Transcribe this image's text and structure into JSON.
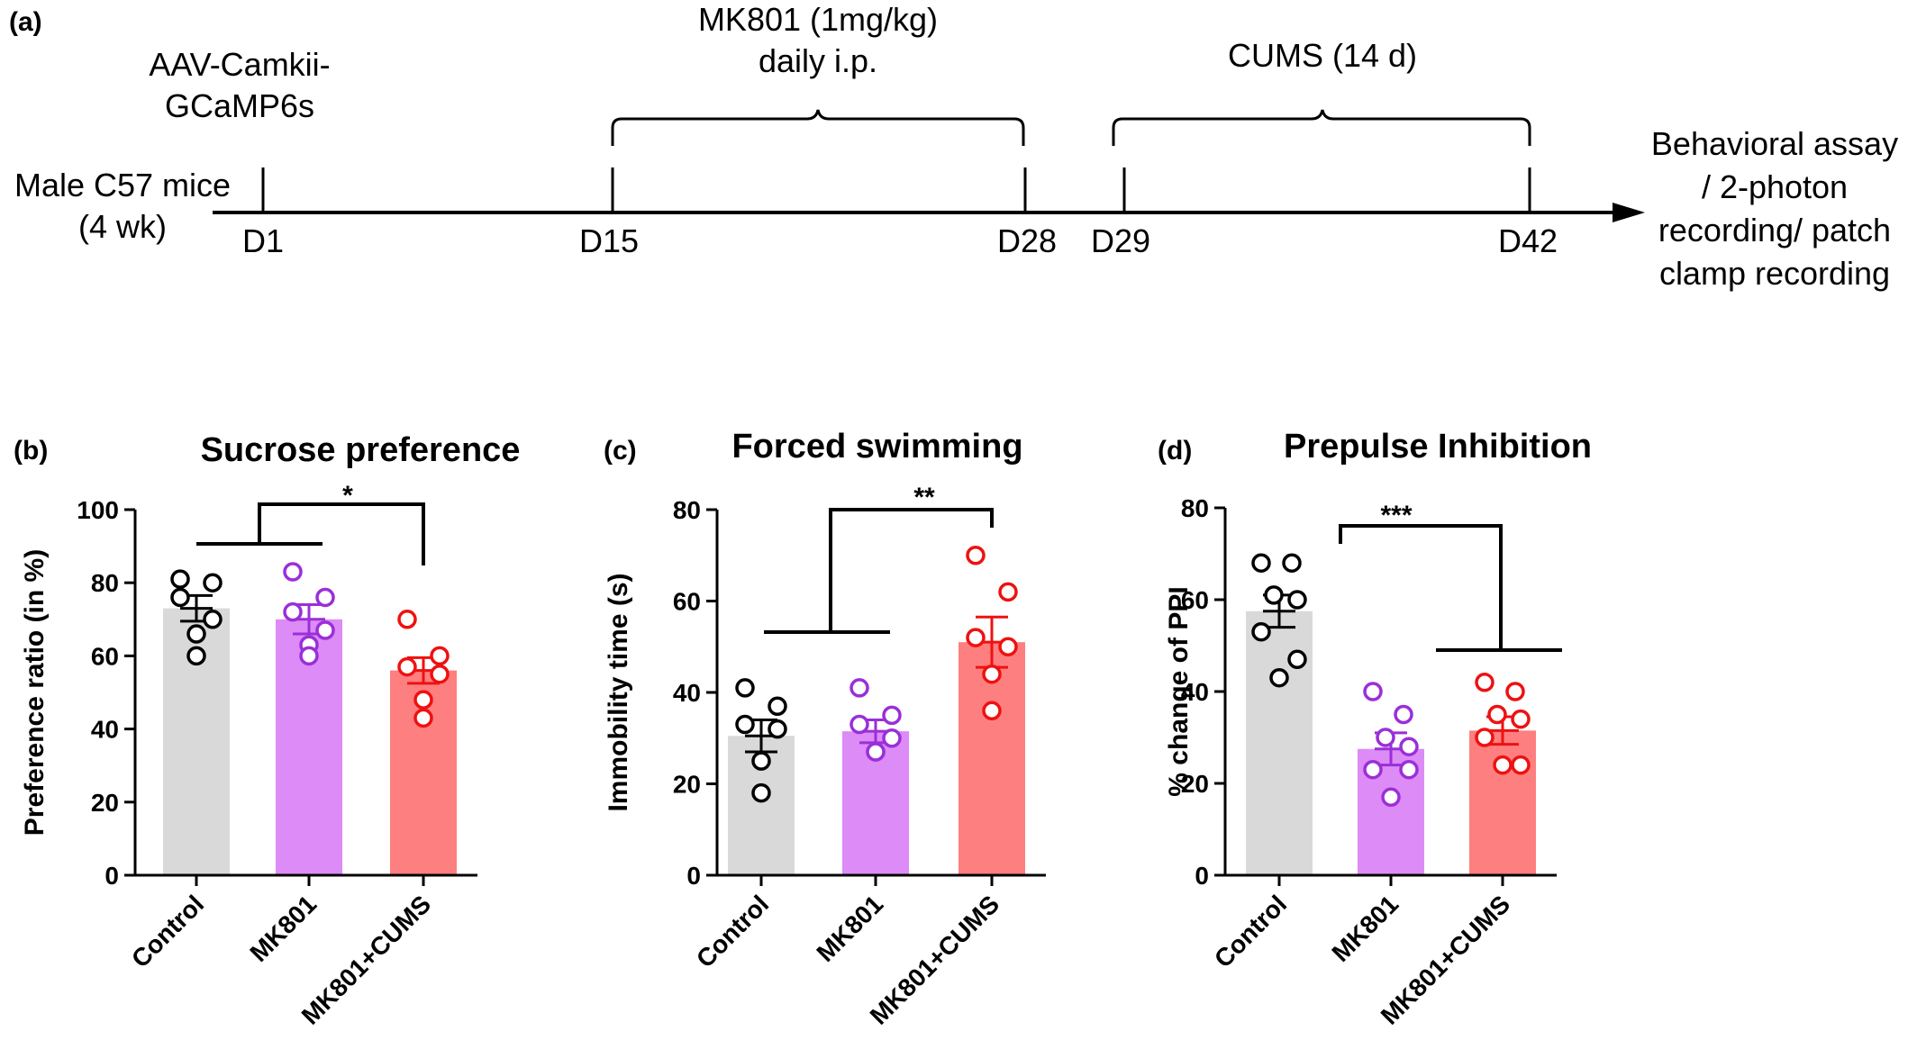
{
  "timeline": {
    "panel_label": "(a)",
    "start_label_line1": "Male C57 mice",
    "start_label_line2": "(4 wk)",
    "aav_line1": "AAV-Camkii-",
    "aav_line2": "GCaMP6s",
    "mk801_line1": "MK801 (1mg/kg)",
    "mk801_line2": "daily i.p.",
    "cums_label": "CUMS (14 d)",
    "days": [
      "D1",
      "D15",
      "D28",
      "D29",
      "D42"
    ],
    "end_line1": "Behavioral assay",
    "end_line2": "/ 2-photon",
    "end_line3": "recording/ patch",
    "end_line4": "clamp recording"
  },
  "chart_data": [
    {
      "type": "bar",
      "panel_label": "(b)",
      "title": "Sucrose preference",
      "ylabel": "Preference ratio (in %)",
      "ylim": [
        0,
        100
      ],
      "yticks": [
        0,
        20,
        40,
        60,
        80,
        100
      ],
      "categories": [
        "Control",
        "MK801",
        "MK801+CUMS"
      ],
      "values": [
        73,
        70,
        56
      ],
      "sem": [
        3.5,
        4,
        3.5
      ],
      "points": [
        [
          81,
          80,
          76,
          70,
          66,
          60
        ],
        [
          83,
          76,
          72,
          67,
          63,
          60
        ],
        [
          70,
          60,
          57,
          55,
          48,
          43
        ]
      ],
      "colors": [
        "#d9d9d9",
        "#dd8bf7",
        "#fe7f7f"
      ],
      "point_colors": [
        "#000000",
        "#9a2fd8",
        "#ee1111"
      ],
      "significance": "*"
    },
    {
      "type": "bar",
      "panel_label": "(c)",
      "title": "Forced swimming",
      "ylabel": "Immobility time (s)",
      "ylim": [
        0,
        80
      ],
      "yticks": [
        0,
        20,
        40,
        60,
        80
      ],
      "categories": [
        "Control",
        "MK801",
        "MK801+CUMS"
      ],
      "values": [
        30.5,
        31.5,
        51
      ],
      "sem": [
        3.5,
        2.5,
        5.5
      ],
      "points": [
        [
          41,
          37,
          33,
          32,
          25,
          18
        ],
        [
          41,
          35,
          33,
          30,
          27,
          27
        ],
        [
          70,
          62,
          52,
          50,
          44,
          36
        ]
      ],
      "colors": [
        "#d9d9d9",
        "#dd8bf7",
        "#fe7f7f"
      ],
      "point_colors": [
        "#000000",
        "#9a2fd8",
        "#ee1111"
      ],
      "significance": "**"
    },
    {
      "type": "bar",
      "panel_label": "(d)",
      "title": "Prepulse Inhibition",
      "ylabel": "% change of PPI",
      "ylim": [
        0,
        80
      ],
      "yticks": [
        0,
        20,
        40,
        60,
        80
      ],
      "categories": [
        "Control",
        "MK801",
        "MK801+CUMS"
      ],
      "values": [
        57.5,
        27.5,
        31.5
      ],
      "sem": [
        3.5,
        3.5,
        3
      ],
      "points": [
        [
          68,
          68,
          61,
          60,
          53,
          47,
          43
        ],
        [
          40,
          35,
          30,
          28,
          23,
          23,
          17
        ],
        [
          42,
          40,
          35,
          34,
          30,
          24,
          24
        ]
      ],
      "colors": [
        "#d9d9d9",
        "#dd8bf7",
        "#fe7f7f"
      ],
      "point_colors": [
        "#000000",
        "#9a2fd8",
        "#ee1111"
      ],
      "significance": "***"
    }
  ]
}
